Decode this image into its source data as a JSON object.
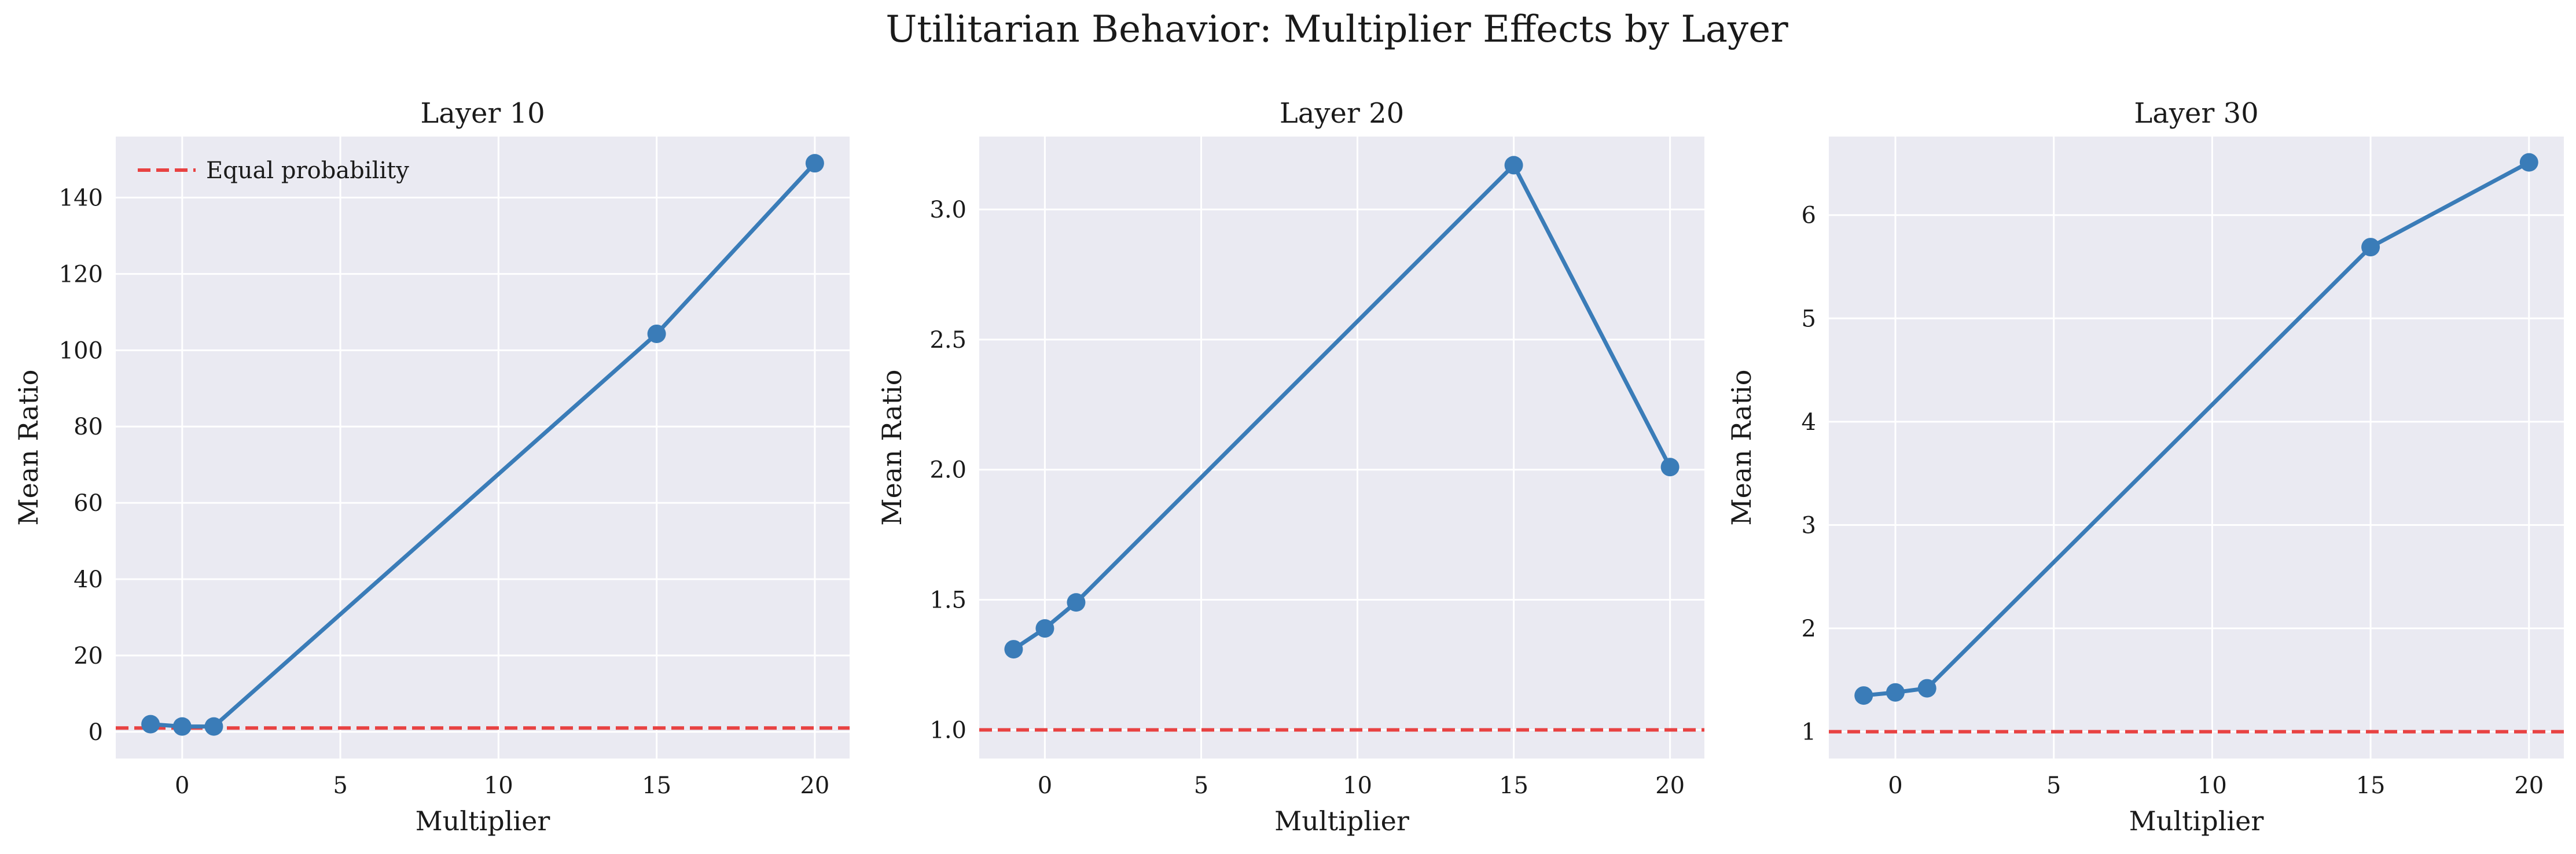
{
  "figure": {
    "title": "Utilitarian Behavior: Multiplier Effects by Layer"
  },
  "colors": {
    "panel_background": "#eaeaf2",
    "grid": "#ffffff",
    "series_line": "#3a7cb8",
    "reference_line": "#e84242",
    "text": "#1a1a1a"
  },
  "chart_data": [
    {
      "type": "line",
      "title": "Layer 10",
      "xlabel": "Multiplier",
      "ylabel": "Mean Ratio",
      "xlim": [
        -2.1,
        21.1
      ],
      "ylim": [
        -7,
        156
      ],
      "xticks": [
        0,
        5,
        10,
        15,
        20
      ],
      "yticks": [
        0,
        20,
        40,
        60,
        80,
        100,
        120,
        140
      ],
      "grid": true,
      "legend": {
        "placement": "upper-left",
        "entries": [
          "Equal probability"
        ]
      },
      "reference_line": {
        "y": 1.0,
        "style": "dashed",
        "label": "Equal probability"
      },
      "series": [
        {
          "x": [
            -1,
            0,
            1,
            15,
            20
          ],
          "y": [
            2.0,
            1.4,
            1.4,
            104.3,
            149.0
          ]
        }
      ]
    },
    {
      "type": "line",
      "title": "Layer 20",
      "xlabel": "Multiplier",
      "ylabel": "Mean Ratio",
      "xlim": [
        -2.1,
        21.1
      ],
      "ylim": [
        0.89,
        3.28
      ],
      "xticks": [
        0,
        5,
        10,
        15,
        20
      ],
      "yticks": [
        1.0,
        1.5,
        2.0,
        2.5,
        3.0
      ],
      "grid": true,
      "reference_line": {
        "y": 1.0,
        "style": "dashed"
      },
      "series": [
        {
          "x": [
            -1,
            0,
            1,
            15,
            20
          ],
          "y": [
            1.31,
            1.39,
            1.49,
            3.17,
            2.01
          ]
        }
      ]
    },
    {
      "type": "line",
      "title": "Layer 30",
      "xlabel": "Multiplier",
      "ylabel": "Mean Ratio",
      "xlim": [
        -2.1,
        21.1
      ],
      "ylim": [
        0.74,
        6.76
      ],
      "xticks": [
        0,
        5,
        10,
        15,
        20
      ],
      "yticks": [
        1,
        2,
        3,
        4,
        5,
        6
      ],
      "grid": true,
      "reference_line": {
        "y": 1.0,
        "style": "dashed"
      },
      "series": [
        {
          "x": [
            -1,
            0,
            1,
            15,
            20
          ],
          "y": [
            1.35,
            1.38,
            1.42,
            5.69,
            6.51
          ]
        }
      ]
    }
  ]
}
